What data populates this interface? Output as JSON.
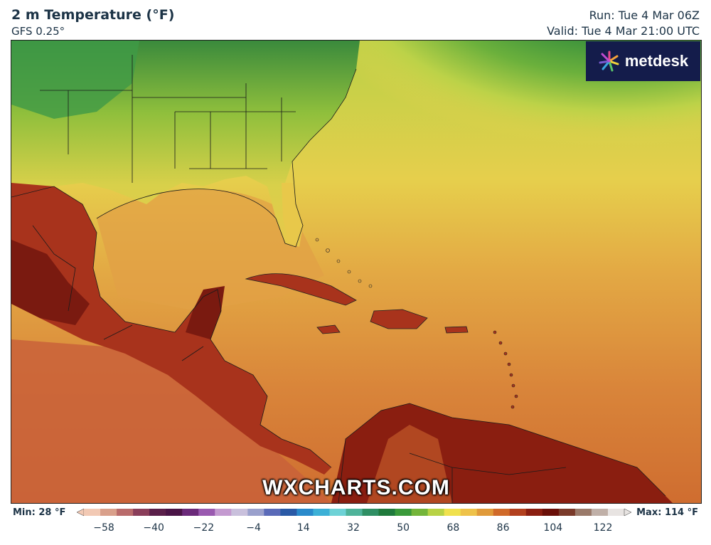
{
  "header": {
    "title": "2 m Temperature (°F)",
    "model": "GFS 0.25°",
    "run": "Run: Tue 4 Mar 06Z",
    "valid": "Valid: Tue 4 Mar 21:00 UTC"
  },
  "branding": {
    "logo_text": "metdesk",
    "watermark": "WXCHARTS.COM",
    "logo_bg": "#141c4b"
  },
  "legend": {
    "min_label": "Min: 28 °F",
    "max_label": "Max: 114 °F",
    "ticks": [
      "−58",
      "−40",
      "−22",
      "−4",
      "14",
      "32",
      "50",
      "68",
      "86",
      "104",
      "122"
    ],
    "colors": [
      "#f2c9b4",
      "#d9a08b",
      "#b96b6b",
      "#8a3e5a",
      "#5a1f4a",
      "#4a1446",
      "#6b2a7a",
      "#9a5ab0",
      "#c49ad0",
      "#c9c0dc",
      "#9aa0cc",
      "#5a6ab8",
      "#2a5aa6",
      "#2a8acb",
      "#3cb0d6",
      "#6ed2d6",
      "#4fb39a",
      "#2f8f64",
      "#1f7a3c",
      "#3a9a3a",
      "#74b53a",
      "#b8d245",
      "#f0e14e",
      "#eec24a",
      "#e09a3a",
      "#d06a2a",
      "#b2401e",
      "#8a1e10",
      "#6a0f08",
      "#7a3a2a",
      "#9a7a6a",
      "#c0b0a8",
      "#e8e4e2"
    ]
  },
  "map": {
    "region": "Gulf of Mexico, Caribbean, Southeast US",
    "palette": {
      "dark_green": "#2f7f3c",
      "green": "#4b9a3c",
      "light_green": "#8fbf3c",
      "yellow_green": "#c9d44a",
      "yellow": "#e6d24e",
      "light_orange": "#e8b34a",
      "orange": "#df9a3c",
      "dark_orange": "#d07a2e",
      "red_orange": "#c2592a",
      "red": "#a8331c",
      "dark_red": "#7a1a10"
    }
  }
}
